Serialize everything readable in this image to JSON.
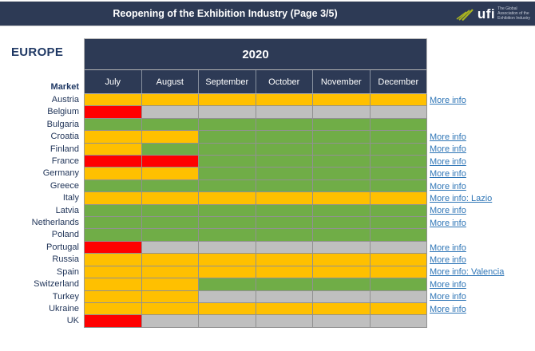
{
  "header": {
    "title": "Reopening of the Exhibition Industry (Page 3/5)",
    "logo": {
      "text": "ufi",
      "tagline_lines": [
        "The Global",
        "Association of the",
        "Exhibition Industry"
      ],
      "swoosh_color": "#a9b420"
    }
  },
  "region_label": "EUROPE",
  "chart_data": {
    "type": "heatmap",
    "year_header": "2020",
    "row_header_label": "Market",
    "columns": [
      "July",
      "August",
      "September",
      "October",
      "November",
      "December"
    ],
    "palette": {
      "red": "#FF0000",
      "yellow": "#FFC000",
      "green": "#70AD47",
      "gray": "#BFBFBF"
    },
    "rows": [
      {
        "market": "Austria",
        "cells": [
          "yellow",
          "yellow",
          "yellow",
          "yellow",
          "yellow",
          "yellow"
        ],
        "link": "More info"
      },
      {
        "market": "Belgium",
        "cells": [
          "red",
          "gray",
          "gray",
          "gray",
          "gray",
          "gray"
        ],
        "link": ""
      },
      {
        "market": "Bulgaria",
        "cells": [
          "green",
          "green",
          "green",
          "green",
          "green",
          "green"
        ],
        "link": ""
      },
      {
        "market": "Croatia",
        "cells": [
          "yellow",
          "yellow",
          "green",
          "green",
          "green",
          "green"
        ],
        "link": "More info"
      },
      {
        "market": "Finland",
        "cells": [
          "yellow",
          "green",
          "green",
          "green",
          "green",
          "green"
        ],
        "link": "More info"
      },
      {
        "market": "France",
        "cells": [
          "red",
          "red",
          "green",
          "green",
          "green",
          "green"
        ],
        "link": "More info"
      },
      {
        "market": "Germany",
        "cells": [
          "yellow",
          "yellow",
          "green",
          "green",
          "green",
          "green"
        ],
        "link": "More info"
      },
      {
        "market": "Greece",
        "cells": [
          "green",
          "green",
          "green",
          "green",
          "green",
          "green"
        ],
        "link": "More info"
      },
      {
        "market": "Italy",
        "cells": [
          "yellow",
          "yellow",
          "yellow",
          "yellow",
          "yellow",
          "yellow"
        ],
        "link": "More info: Lazio"
      },
      {
        "market": "Latvia",
        "cells": [
          "green",
          "green",
          "green",
          "green",
          "green",
          "green"
        ],
        "link": "More info"
      },
      {
        "market": "Netherlands",
        "cells": [
          "green",
          "green",
          "green",
          "green",
          "green",
          "green"
        ],
        "link": "More info"
      },
      {
        "market": "Poland",
        "cells": [
          "green",
          "green",
          "green",
          "green",
          "green",
          "green"
        ],
        "link": ""
      },
      {
        "market": "Portugal",
        "cells": [
          "red",
          "gray",
          "gray",
          "gray",
          "gray",
          "gray"
        ],
        "link": "More info"
      },
      {
        "market": "Russia",
        "cells": [
          "yellow",
          "yellow",
          "yellow",
          "yellow",
          "yellow",
          "yellow"
        ],
        "link": "More info"
      },
      {
        "market": "Spain",
        "cells": [
          "yellow",
          "yellow",
          "yellow",
          "yellow",
          "yellow",
          "yellow"
        ],
        "link": "More info: Valencia"
      },
      {
        "market": "Switzerland",
        "cells": [
          "yellow",
          "yellow",
          "green",
          "green",
          "green",
          "green"
        ],
        "link": "More info"
      },
      {
        "market": "Turkey",
        "cells": [
          "yellow",
          "yellow",
          "gray",
          "gray",
          "gray",
          "gray"
        ],
        "link": "More info"
      },
      {
        "market": "Ukraine",
        "cells": [
          "yellow",
          "yellow",
          "yellow",
          "yellow",
          "yellow",
          "yellow"
        ],
        "link": "More info"
      },
      {
        "market": "UK",
        "cells": [
          "red",
          "gray",
          "gray",
          "gray",
          "gray",
          "gray"
        ],
        "link": ""
      }
    ]
  }
}
